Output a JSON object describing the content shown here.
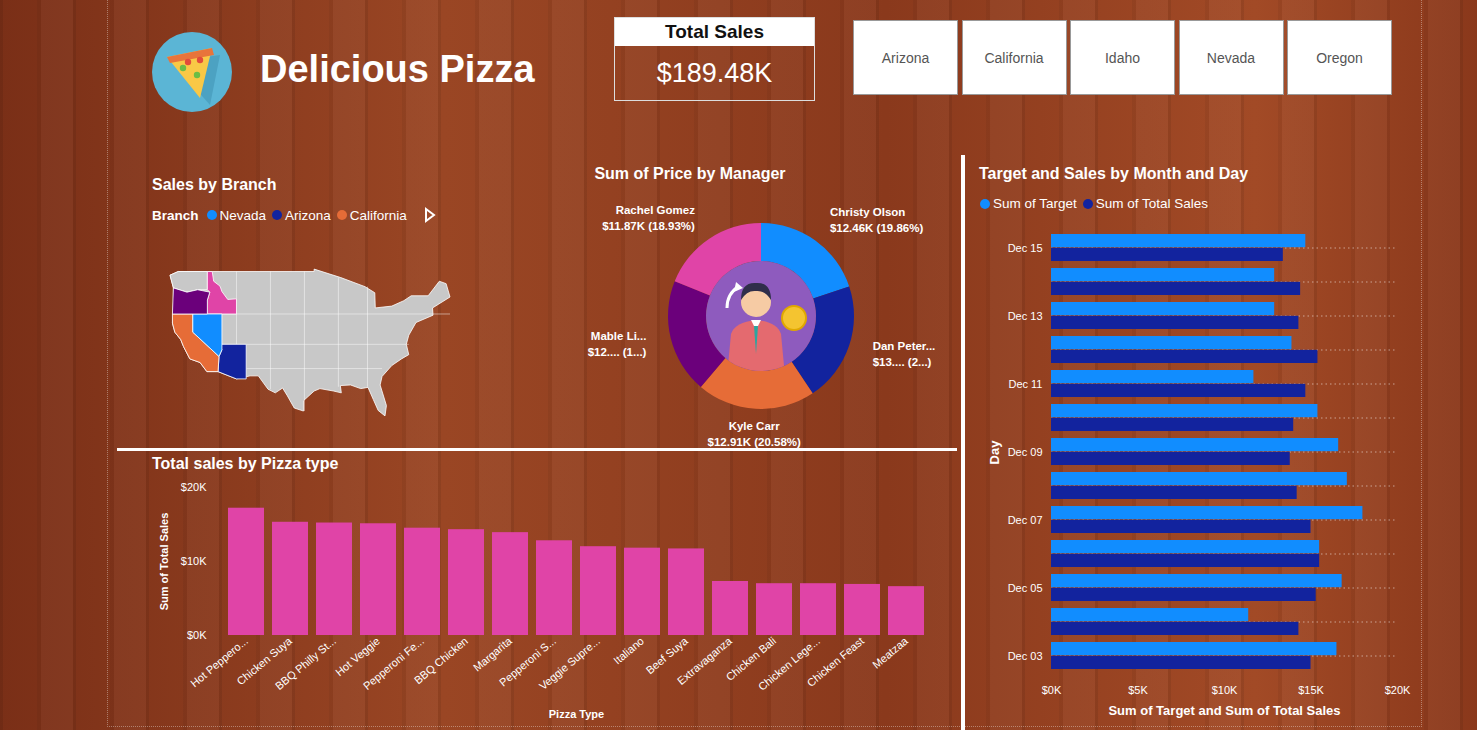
{
  "header": {
    "title": "Delicious Pizza"
  },
  "card": {
    "title": "Total Sales",
    "value": "$189.48K"
  },
  "slicer": {
    "items": [
      "Arizona",
      "California",
      "Idaho",
      "Nevada",
      "Oregon"
    ]
  },
  "chart_data": [
    {
      "type": "map",
      "title": "Sales by Branch",
      "legend_title": "Branch",
      "legend": "top",
      "categories": [
        "Nevada",
        "Arizona",
        "California"
      ],
      "colors": [
        "#118DFF",
        "#12239E",
        "#E66C37"
      ]
    },
    {
      "type": "pie",
      "title": "Sum of Price by Manager",
      "data_labels": true,
      "categories": [
        "Christy Olson",
        "Dan Peter...",
        "Kyle Carr",
        "Mable Li...",
        "Rachel Gomez"
      ],
      "values": [
        12.46,
        13.03,
        12.91,
        12.47,
        11.87
      ],
      "value_labels": [
        "$12.46K (19.86%)",
        "$13.... (2...)",
        "$12.91K (20.58%)",
        "$12.... (1...)",
        "$11.87K (18.93%)"
      ],
      "colors": [
        "#118DFF",
        "#12239E",
        "#E66C37",
        "#6B007B",
        "#E044A7"
      ]
    },
    {
      "type": "bar",
      "title": "Total sales by Pizza type",
      "xlabel": "Pizza Type",
      "ylabel": "Sum of Total Sales",
      "categories": [
        "Hot Peppero...",
        "Chicken Suya",
        "BBQ Philly St...",
        "Hot Veggie",
        "Pepperoni Fe...",
        "BBQ Chicken",
        "Margarita",
        "Pepperoni S...",
        "Veggie Supre...",
        "Italiano",
        "Beef Suya",
        "Extravaganza",
        "Chicken Bali",
        "Chicken Lege...",
        "Chicken Feast",
        "Meatzaa"
      ],
      "values": [
        17200,
        15300,
        15200,
        15100,
        14500,
        14300,
        13900,
        12800,
        12000,
        11800,
        11700,
        7300,
        7000,
        7000,
        6900,
        6600
      ],
      "color": "#E044A7",
      "grid": false,
      "ylim": [
        0,
        20000
      ],
      "yticks": [
        {
          "value": 0,
          "label": "$0K"
        },
        {
          "value": 10000,
          "label": "$10K"
        },
        {
          "value": 20000,
          "label": "$20K"
        }
      ]
    },
    {
      "type": "bar",
      "orientation": "horizontal",
      "title": "Target and Sales by Month and Day",
      "xlabel": "Sum of Target and Sum of Total Sales",
      "ylabel": "Day",
      "legend": "top",
      "grid": true,
      "categories": [
        "Dec 15",
        null,
        "Dec 13",
        null,
        "Dec 11",
        null,
        "Dec 09",
        null,
        "Dec 07",
        null,
        "Dec 05",
        null,
        "Dec 03"
      ],
      "series": [
        {
          "name": "Sum of Target",
          "color": "#118DFF",
          "values": [
            14700,
            12900,
            12900,
            13900,
            11700,
            15400,
            16600,
            17100,
            18000,
            15500,
            16800,
            11400,
            16500
          ]
        },
        {
          "name": "Sum of Total Sales",
          "color": "#12239E",
          "values": [
            13400,
            14400,
            14300,
            15400,
            14700,
            14000,
            13800,
            14200,
            15000,
            15500,
            15300,
            14300,
            15000
          ]
        }
      ],
      "xlim": [
        0,
        20000
      ],
      "xticks": [
        {
          "value": 0,
          "label": "$0K"
        },
        {
          "value": 5000,
          "label": "$5K"
        },
        {
          "value": 10000,
          "label": "$10K"
        },
        {
          "value": 15000,
          "label": "$15K"
        },
        {
          "value": 20000,
          "label": "$20K"
        }
      ]
    }
  ]
}
